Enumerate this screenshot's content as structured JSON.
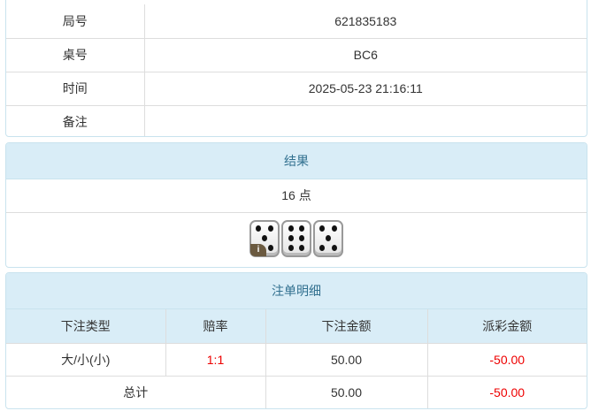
{
  "info": {
    "rows": [
      {
        "label": "局号",
        "value": "621835183"
      },
      {
        "label": "桌号",
        "value": "BC6"
      },
      {
        "label": "时间",
        "value": "2025-05-23 21:16:11"
      },
      {
        "label": "备注",
        "value": ""
      }
    ]
  },
  "result": {
    "title": "结果",
    "points": "16 点",
    "dice": [
      5,
      6,
      5
    ],
    "info_icon": "i"
  },
  "bets": {
    "title": "注单明细",
    "headers": [
      "下注类型",
      "赔率",
      "下注金额",
      "派彩金额"
    ],
    "rows": [
      {
        "type": "大/小(小)",
        "odds": "1:1",
        "amount": "50.00",
        "payout": "-50.00"
      }
    ],
    "total": {
      "label": "总计",
      "amount": "50.00",
      "payout": "-50.00"
    }
  },
  "colors": {
    "header_bg": "#d9edf7",
    "negative": "#e00000"
  }
}
